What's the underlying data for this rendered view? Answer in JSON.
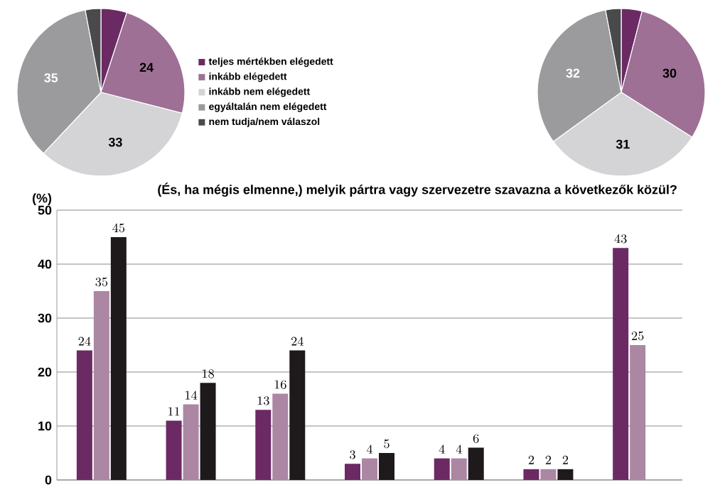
{
  "chart_data": [
    {
      "type": "pie",
      "categories": [
        "teljes mértékben elégedett",
        "inkább elégedett",
        "inkább nem elégedett",
        "egyáltalán nem elégedett",
        "nem tudja/nem válaszol"
      ],
      "values": [
        5,
        24,
        33,
        35,
        3
      ],
      "value_labels": [
        null,
        "24",
        "33",
        "35",
        null
      ],
      "colors": [
        "#6b2a63",
        "#9e7095",
        "#d4d4d6",
        "#9b9b9e",
        "#4a4a4c"
      ],
      "legend": "right"
    },
    {
      "type": "pie",
      "categories": [
        null,
        null,
        null,
        null,
        null
      ],
      "values": [
        4,
        30,
        31,
        32,
        3
      ],
      "value_labels": [
        null,
        "30",
        "31",
        "32",
        null
      ],
      "colors": [
        "#6b2a63",
        "#9e7095",
        "#d4d4d6",
        "#9b9b9e",
        "#4a4a4c"
      ]
    },
    {
      "type": "bar",
      "title": "(És, ha mégis elmenne,) melyik pártra vagy szervezetre szavazna a következők közül?",
      "ylabel": "(%)",
      "categories": [
        null,
        null,
        null,
        null,
        null,
        null,
        null
      ],
      "series": [
        {
          "color": "#6b2a63",
          "values": [
            24,
            11,
            13,
            3,
            4,
            2,
            43
          ]
        },
        {
          "color": "#ab87a3",
          "values": [
            35,
            14,
            16,
            4,
            4,
            2,
            25
          ]
        },
        {
          "color": "#1e1a1c",
          "values": [
            45,
            18,
            24,
            5,
            6,
            2,
            null
          ]
        }
      ],
      "ylim": [
        0,
        50
      ],
      "yticks": [
        0,
        10,
        20,
        30,
        40,
        50
      ],
      "grid": "y",
      "data_labels": true
    }
  ]
}
